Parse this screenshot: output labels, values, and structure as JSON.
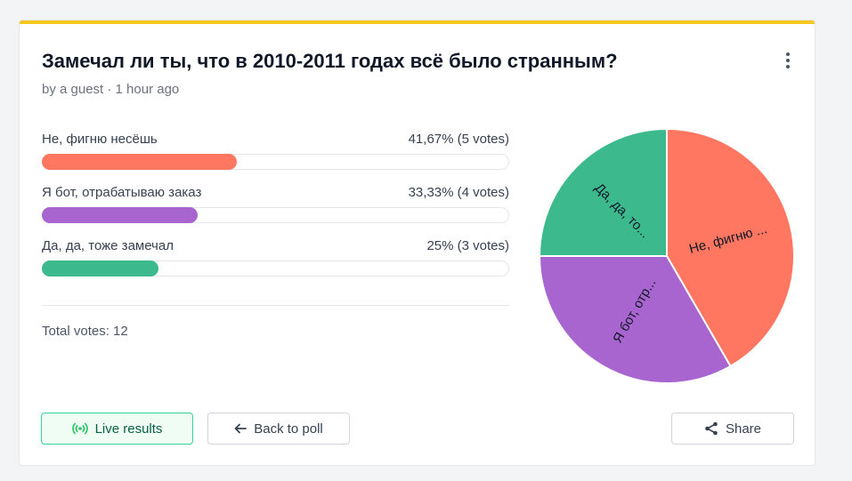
{
  "poll": {
    "title": "Замечал ли ты, что в 2010-2011 годах всё было странным?",
    "meta": "by a guest · 1 hour ago",
    "options": [
      {
        "label": "Не, фигню несёшь",
        "result": "41,67% (5 votes)",
        "fraction": 0.4167,
        "color": "#ff7661",
        "pie_label": "Не, фигню ..."
      },
      {
        "label": "Я бот, отрабатываю заказ",
        "result": "33,33% (4 votes)",
        "fraction": 0.3333,
        "color": "#a865d0",
        "pie_label": "Я бот, отр..."
      },
      {
        "label": "Да, да, тоже замечал",
        "result": "25% (3 votes)",
        "fraction": 0.25,
        "color": "#3dba8d",
        "pie_label": "Да, да, то..."
      }
    ],
    "total": "Total votes: 12"
  },
  "buttons": {
    "live": "Live results",
    "back": "Back to poll",
    "share": "Share"
  },
  "colors": {
    "accent_bar": "#f4c81f"
  },
  "chart_data": {
    "type": "pie",
    "categories": [
      "Не, фигню несёшь",
      "Я бот, отрабатываю заказ",
      "Да, да, тоже замечал"
    ],
    "values": [
      5,
      4,
      3
    ],
    "labels": [
      "Не, фигню ...",
      "Я бот, отр...",
      "Да, да, то..."
    ]
  }
}
